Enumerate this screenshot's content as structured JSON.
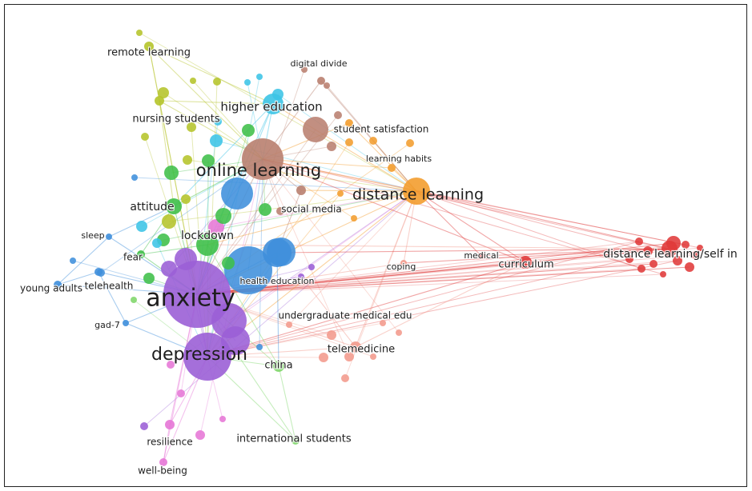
{
  "clusters": {
    "purple": "#9b5fd6",
    "blue": "#3f8fdc",
    "green": "#3fbf49",
    "yellow": "#b5c42a",
    "cyan": "#3cc4e6",
    "brown": "#b9806f",
    "orange": "#f39d2f",
    "red": "#e03a3a",
    "salmon": "#f29a8c",
    "pink": "#e676d6",
    "lime": "#7fd66a"
  },
  "nodes": [
    {
      "id": "anxiety",
      "label": "anxiety",
      "cluster": "purple",
      "weight": 42
    },
    {
      "id": "depression",
      "label": "depression",
      "cluster": "purple",
      "weight": 30
    },
    {
      "id": "online-learning",
      "label": "online learning",
      "cluster": "brown",
      "weight": 26
    },
    {
      "id": "distance-learning",
      "label": "distance learning",
      "cluster": "orange",
      "weight": 17
    },
    {
      "id": "higher-education",
      "label": "higher education",
      "cluster": "cyan",
      "weight": 12
    },
    {
      "id": "lockdown",
      "label": "lockdown",
      "cluster": "green",
      "weight": 10
    },
    {
      "id": "attitude",
      "label": "attitude",
      "cluster": "green",
      "weight": 10
    },
    {
      "id": "health-education",
      "label": "health education",
      "cluster": "blue",
      "weight": 8
    },
    {
      "id": "china",
      "label": "china",
      "cluster": "lime",
      "weight": 7
    },
    {
      "id": "telemedicine",
      "label": "telemedicine",
      "cluster": "salmon",
      "weight": 7
    },
    {
      "id": "curriculum",
      "label": "curriculum",
      "cluster": "red",
      "weight": 8
    },
    {
      "id": "distance-learning-self",
      "label": "distance learning/self in",
      "cluster": "red",
      "weight": 9
    },
    {
      "id": "social-media",
      "label": "social media",
      "cluster": "brown",
      "weight": 6
    },
    {
      "id": "student-satisfaction",
      "label": "student satisfaction",
      "cluster": "orange",
      "weight": 6
    },
    {
      "id": "learning-habits",
      "label": "learning habits",
      "cluster": "orange",
      "weight": 5
    },
    {
      "id": "digital-divide",
      "label": "digital divide",
      "cluster": "brown",
      "weight": 5
    },
    {
      "id": "nursing-students",
      "label": "nursing students",
      "cluster": "yellow",
      "weight": 6
    },
    {
      "id": "remote-learning",
      "label": "remote learning",
      "cluster": "yellow",
      "weight": 6
    },
    {
      "id": "sleep",
      "label": "sleep",
      "cluster": "blue",
      "weight": 4
    },
    {
      "id": "fear",
      "label": "fear",
      "cluster": "green",
      "weight": 5
    },
    {
      "id": "young-adults",
      "label": "young adults",
      "cluster": "blue",
      "weight": 5
    },
    {
      "id": "telehealth",
      "label": "telehealth",
      "cluster": "blue",
      "weight": 5
    },
    {
      "id": "gad-7",
      "label": "gad-7",
      "cluster": "blue",
      "weight": 4
    },
    {
      "id": "undergraduate",
      "label": "undergraduate medical edu",
      "cluster": "purple",
      "weight": 5
    },
    {
      "id": "coping",
      "label": "coping",
      "cluster": "salmon",
      "weight": 4
    },
    {
      "id": "medical",
      "label": "medical",
      "cluster": "red",
      "weight": 4
    },
    {
      "id": "resilience",
      "label": "resilience",
      "cluster": "pink",
      "weight": 6
    },
    {
      "id": "well-being",
      "label": "well-being",
      "cluster": "pink",
      "weight": 5
    },
    {
      "id": "international-students",
      "label": "international students",
      "cluster": "lime",
      "weight": 5
    }
  ]
}
